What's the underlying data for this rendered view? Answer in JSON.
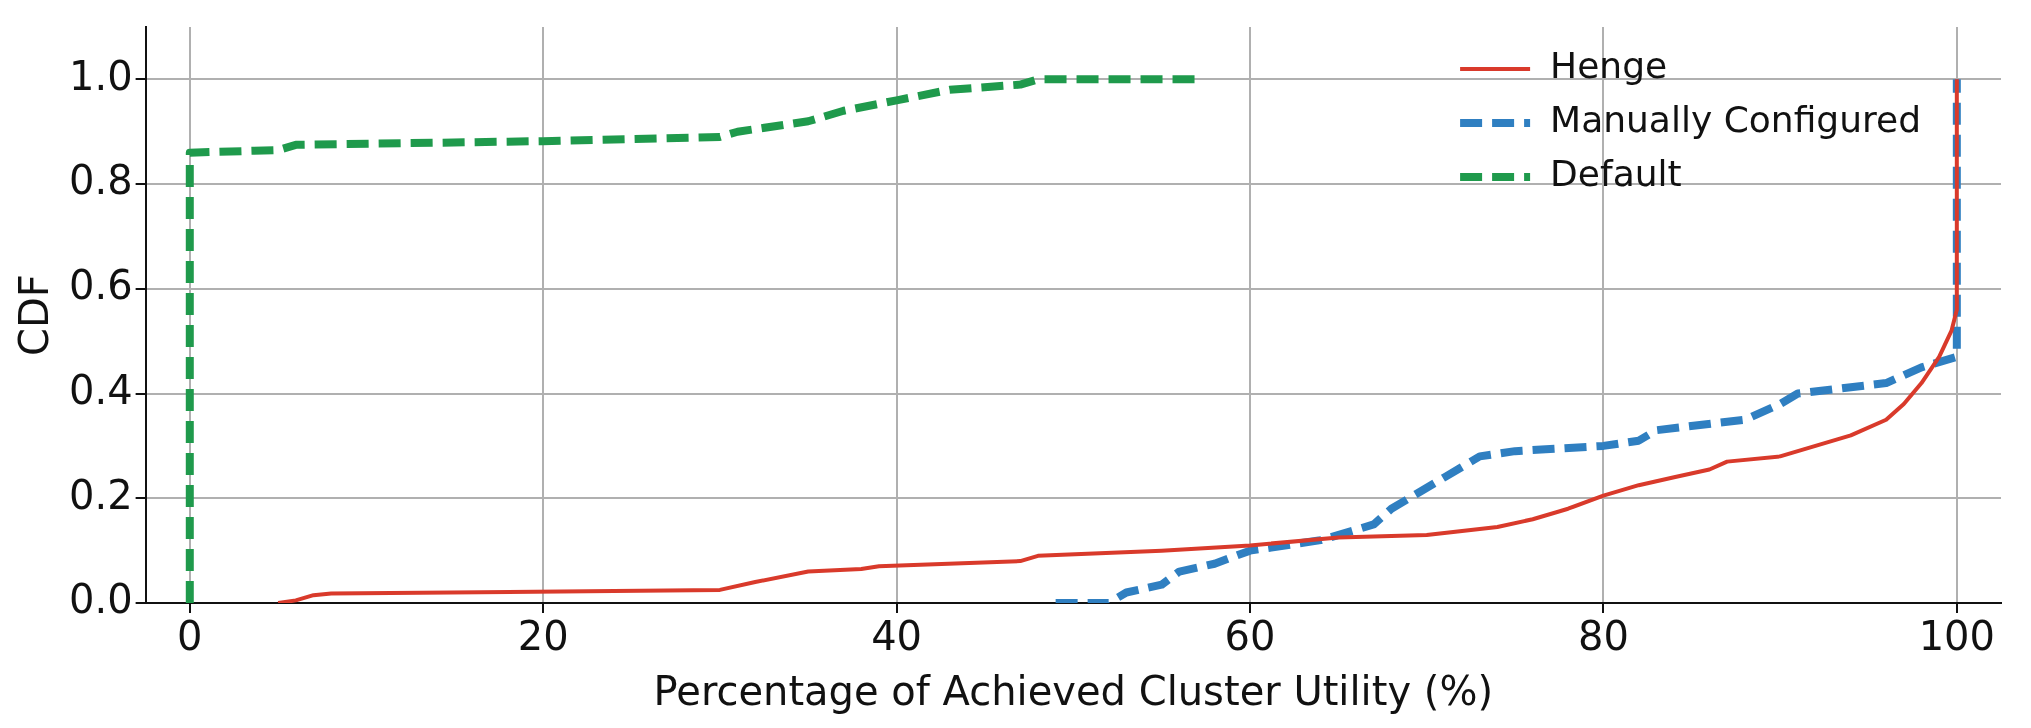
{
  "chart_data": {
    "type": "line",
    "xlabel": "Percentage of Achieved Cluster Utility (%)",
    "ylabel": "CDF",
    "xlim": [
      -2.5,
      102.5
    ],
    "ylim": [
      0,
      1.1
    ],
    "xticks": [
      0,
      20,
      40,
      60,
      80,
      100
    ],
    "yticks": [
      {
        "value": 0,
        "label": "0.0"
      },
      {
        "value": 0.2,
        "label": "0.2"
      },
      {
        "value": 0.4,
        "label": "0.4"
      },
      {
        "value": 0.6,
        "label": "0.6"
      },
      {
        "value": 0.8,
        "label": "0.8"
      },
      {
        "value": 1,
        "label": "1.0"
      }
    ],
    "grid": true,
    "legend": "top right",
    "marker": "none",
    "series": [
      {
        "name": "Henge",
        "color": "#d93a2b",
        "line_style": "solid",
        "x": [
          5,
          6,
          7,
          8,
          30,
          32,
          35,
          38,
          39,
          47,
          48,
          55,
          60,
          65,
          70,
          74,
          76,
          78,
          80,
          82,
          84,
          86,
          87,
          90,
          92,
          94,
          96,
          97,
          98,
          99,
          99.7,
          100,
          100
        ],
        "values": [
          0,
          0.005,
          0.015,
          0.018,
          0.025,
          0.04,
          0.06,
          0.065,
          0.07,
          0.08,
          0.09,
          0.1,
          0.11,
          0.125,
          0.13,
          0.145,
          0.16,
          0.18,
          0.205,
          0.225,
          0.24,
          0.255,
          0.27,
          0.28,
          0.3,
          0.32,
          0.35,
          0.38,
          0.42,
          0.47,
          0.52,
          0.56,
          1.0
        ]
      },
      {
        "name": "Manually Configured",
        "color": "#2f7fc1",
        "line_style": "dashed",
        "x": [
          49,
          52,
          53,
          55,
          56,
          58,
          60,
          64,
          67,
          68,
          69,
          71,
          73,
          75,
          80,
          82,
          83,
          88,
          90,
          91,
          96,
          98,
          100,
          100,
          100
        ],
        "values": [
          0,
          0,
          0.02,
          0.035,
          0.06,
          0.075,
          0.1,
          0.12,
          0.15,
          0.18,
          0.2,
          0.24,
          0.28,
          0.29,
          0.3,
          0.31,
          0.33,
          0.35,
          0.38,
          0.4,
          0.42,
          0.45,
          0.47,
          0.52,
          1.0
        ]
      },
      {
        "name": "Default",
        "color": "#1f9a4c",
        "line_style": "dashed",
        "x": [
          0,
          0,
          5,
          6,
          20,
          30,
          31,
          35,
          37,
          40,
          43,
          47,
          48,
          57
        ],
        "values": [
          0,
          0.86,
          0.865,
          0.875,
          0.882,
          0.89,
          0.9,
          0.92,
          0.94,
          0.96,
          0.98,
          0.99,
          1.0,
          1.0
        ]
      }
    ]
  }
}
